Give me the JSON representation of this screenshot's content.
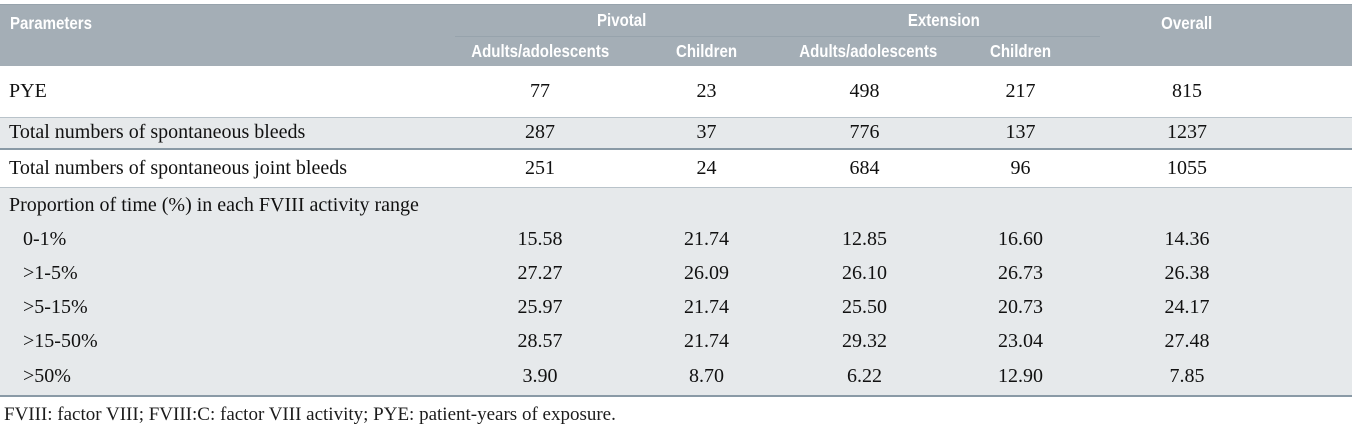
{
  "table": {
    "header": {
      "parameters_label": "Parameters",
      "group_pivotal": "Pivotal",
      "group_extension": "Extension",
      "overall_label": "Overall",
      "sub_pivotal_adults": "Adults/adolescents",
      "sub_pivotal_children": "Children",
      "sub_extension_adults": "Adults/adolescents",
      "sub_extension_children": "Children"
    },
    "rows": [
      {
        "label": "PYE",
        "values": [
          "77",
          "23",
          "498",
          "217",
          "815"
        ]
      },
      {
        "label": "Total numbers of spontaneous bleeds",
        "values": [
          "287",
          "37",
          "776",
          "137",
          "1237"
        ]
      },
      {
        "label": "Total numbers of spontaneous joint bleeds",
        "values": [
          "251",
          "24",
          "684",
          "96",
          "1055"
        ]
      },
      {
        "label": "Proportion of time (%) in each FVIII activity range",
        "values": [
          "",
          "",
          "",
          "",
          ""
        ]
      },
      {
        "label": "0-1%",
        "values": [
          "15.58",
          "21.74",
          "12.85",
          "16.60",
          "14.36"
        ]
      },
      {
        "label": ">1-5%",
        "values": [
          "27.27",
          "26.09",
          "26.10",
          "26.73",
          "26.38"
        ]
      },
      {
        "label": ">5-15%",
        "values": [
          "25.97",
          "21.74",
          "25.50",
          "20.73",
          "24.17"
        ]
      },
      {
        "label": ">15-50%",
        "values": [
          "28.57",
          "21.74",
          "29.32",
          "23.04",
          "27.48"
        ]
      },
      {
        "label": ">50%",
        "values": [
          "3.90",
          "8.70",
          "6.22",
          "12.90",
          "7.85"
        ]
      }
    ],
    "footnote": "FVIII: factor VIII; FVIII:C: factor VIII activity; PYE: patient-years of exposure."
  },
  "colors": {
    "header_background": "#a4aeb6",
    "header_text": "#ffffff",
    "shaded_row_background": "#e6e9eb",
    "row_border_light": "#b9c3ca",
    "row_border_dark": "#8a9aa6",
    "body_text": "#111111"
  }
}
